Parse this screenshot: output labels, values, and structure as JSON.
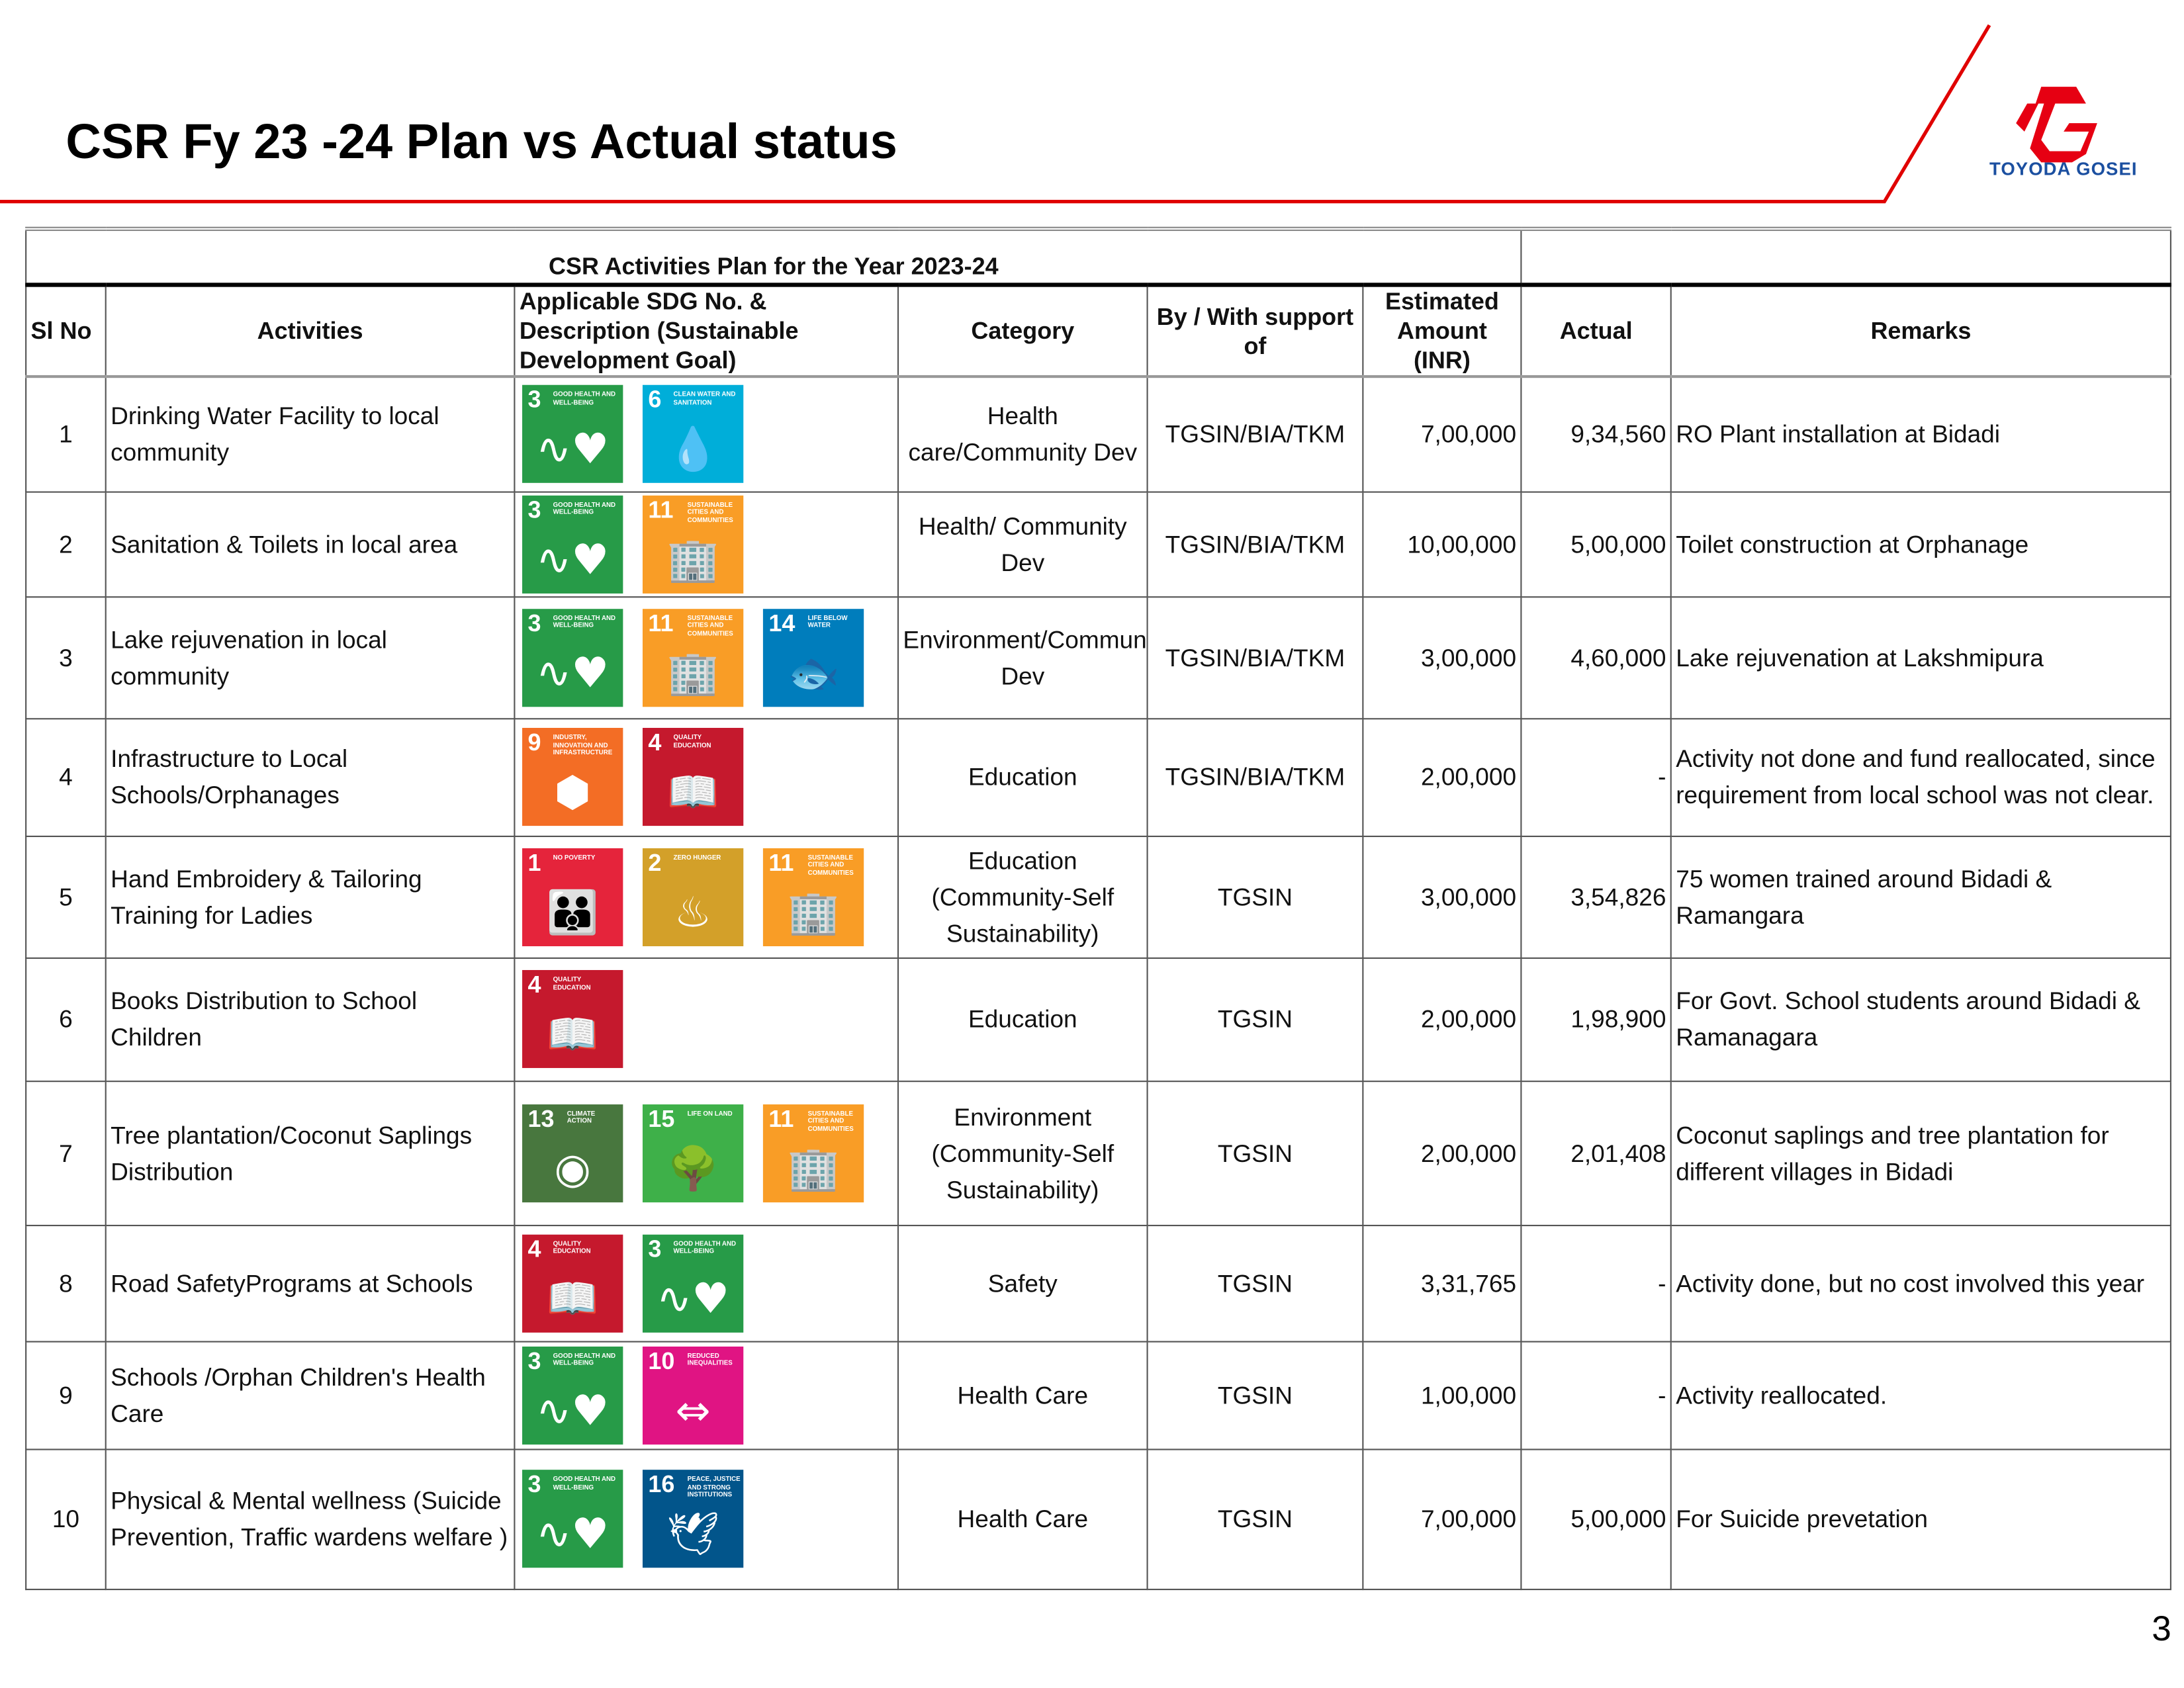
{
  "header": {
    "title": "CSR Fy 23 -24 Plan vs Actual status",
    "logo_text": "TOYODA GOSEI",
    "page_number": "3"
  },
  "table": {
    "caption": "CSR Activities Plan for the Year 2023-24",
    "columns": [
      "Sl No",
      "Activities",
      "Applicable SDG No. & Description (Sustainable Development Goal)",
      "Category",
      "By / With support of",
      "Estimated Amount (INR)",
      "Actual",
      "Remarks"
    ],
    "rows": [
      {
        "sl": "1",
        "activity": "Drinking Water Facility to local community",
        "sdgs": [
          3,
          6
        ],
        "category": "Health care/Community Dev",
        "by": "TGSIN/BIA/TKM",
        "estimated": "7,00,000",
        "actual": "9,34,560",
        "remarks": "RO Plant installation at Bidadi"
      },
      {
        "sl": "2",
        "activity": "Sanitation & Toilets in local area",
        "sdgs": [
          3,
          11
        ],
        "category": "Health/ Community Dev",
        "by": "TGSIN/BIA/TKM",
        "estimated": "10,00,000",
        "actual": "5,00,000",
        "remarks": "Toilet construction at Orphanage"
      },
      {
        "sl": "3",
        "activity": "Lake rejuvenation in local community",
        "sdgs": [
          3,
          11,
          14
        ],
        "category": "Environment/Community Dev",
        "by": "TGSIN/BIA/TKM",
        "estimated": "3,00,000",
        "actual": "4,60,000",
        "remarks": "Lake rejuvenation at Lakshmipura"
      },
      {
        "sl": "4",
        "activity": "Infrastructure to Local Schools/Orphanages",
        "sdgs": [
          9,
          4
        ],
        "category": "Education",
        "by": "TGSIN/BIA/TKM",
        "estimated": "2,00,000",
        "actual": "-",
        "remarks": "Activity not done and fund reallocated, since requirement from local school was not clear."
      },
      {
        "sl": "5",
        "activity": "Hand Embroidery & Tailoring Training for Ladies",
        "sdgs": [
          1,
          2,
          11
        ],
        "category": "Education (Community-Self Sustainability)",
        "by": "TGSIN",
        "estimated": "3,00,000",
        "actual": "3,54,826",
        "remarks": "75 women trained around Bidadi & Ramangara"
      },
      {
        "sl": "6",
        "activity": "Books Distribution to School Children",
        "sdgs": [
          4
        ],
        "category": "Education",
        "by": "TGSIN",
        "estimated": "2,00,000",
        "actual": "1,98,900",
        "remarks": "For Govt. School students around Bidadi & Ramanagara"
      },
      {
        "sl": "7",
        "activity": "Tree plantation/Coconut Saplings Distribution",
        "sdgs": [
          13,
          15,
          11
        ],
        "category": "Environment (Community-Self Sustainability)",
        "by": "TGSIN",
        "estimated": "2,00,000",
        "actual": "2,01,408",
        "remarks": "Coconut saplings and tree plantation for different villages in Bidadi"
      },
      {
        "sl": "8",
        "activity": "Road SafetyPrograms at Schools",
        "sdgs": [
          4,
          3
        ],
        "category": "Safety",
        "by": "TGSIN",
        "estimated": "3,31,765",
        "actual": "-",
        "remarks": "Activity done, but no cost involved this year"
      },
      {
        "sl": "9",
        "activity": "Schools /Orphan Children's Health Care",
        "sdgs": [
          3,
          10
        ],
        "category": "Health Care",
        "by": "TGSIN",
        "estimated": "1,00,000",
        "actual": "-",
        "remarks": "Activity reallocated."
      },
      {
        "sl": "10",
        "activity": "Physical & Mental wellness (Suicide Prevention, Traffic wardens welfare )",
        "sdgs": [
          3,
          16
        ],
        "category": "Health Care",
        "by": "TGSIN",
        "estimated": "7,00,000",
        "actual": "5,00,000",
        "remarks": "For Suicide prevetation"
      }
    ]
  },
  "sdg_goals": {
    "1": {
      "label": "No Poverty",
      "color": "#E5243B",
      "icon": "people-icon",
      "glyph": "👪"
    },
    "2": {
      "label": "Zero Hunger",
      "color": "#D3A029",
      "icon": "bowl-icon",
      "glyph": "♨"
    },
    "3": {
      "label": "Good Health and Well-Being",
      "color": "#279B48",
      "icon": "heartbeat-icon",
      "glyph": "∿♥"
    },
    "4": {
      "label": "Quality Education",
      "color": "#C5192D",
      "icon": "book-icon",
      "glyph": "📖"
    },
    "6": {
      "label": "Clean Water and Sanitation",
      "color": "#00AED9",
      "icon": "water-glass-icon",
      "glyph": "💧"
    },
    "9": {
      "label": "Industry, Innovation and Infrastructure",
      "color": "#F36D25",
      "icon": "cubes-icon",
      "glyph": "⬢"
    },
    "10": {
      "label": "Reduced Inequalities",
      "color": "#E01483",
      "icon": "equality-icon",
      "glyph": "⇔"
    },
    "11": {
      "label": "Sustainable Cities and Communities",
      "color": "#F99D26",
      "icon": "buildings-icon",
      "glyph": "🏢"
    },
    "13": {
      "label": "Climate Action",
      "color": "#48773E",
      "icon": "eye-globe-icon",
      "glyph": "◉"
    },
    "14": {
      "label": "Life Below Water",
      "color": "#007DBC",
      "icon": "fish-icon",
      "glyph": "🐟"
    },
    "15": {
      "label": "Life on Land",
      "color": "#3EB049",
      "icon": "tree-icon",
      "glyph": "🌳"
    },
    "16": {
      "label": "Peace, Justice and Strong Institutions",
      "color": "#02558B",
      "icon": "dove-gavel-icon",
      "glyph": "🕊"
    }
  },
  "colors": {
    "accent_red": "#E00000",
    "logo_blue": "#1B4FA0"
  }
}
